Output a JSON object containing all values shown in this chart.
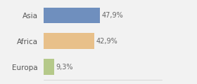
{
  "categories": [
    "Asia",
    "Africa",
    "Europa"
  ],
  "values": [
    47.9,
    42.9,
    9.3
  ],
  "labels": [
    "47,9%",
    "42,9%",
    "9,3%"
  ],
  "bar_colors": [
    "#6f8fbe",
    "#e8c08a",
    "#b5c98a"
  ],
  "background_color": "#f2f2f2",
  "xlim": [
    0,
    100
  ],
  "label_fontsize": 7,
  "tick_fontsize": 7.5
}
